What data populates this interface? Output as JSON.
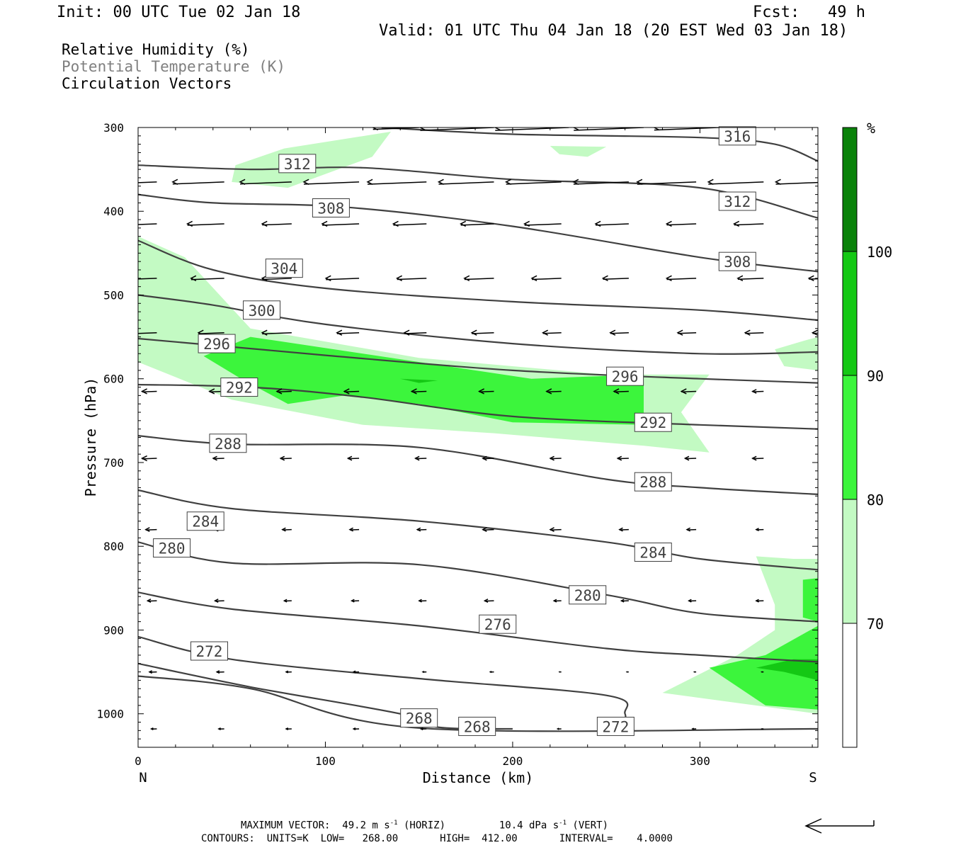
{
  "header": {
    "init": "Init: 00 UTC Tue 02 Jan 18",
    "fcst": "Fcst:   49 h",
    "valid": "Valid: 01 UTC Thu 04 Jan 18 (20 EST Wed 03 Jan 18)"
  },
  "legend": {
    "line1": "Relative Humidity (%)",
    "line2": "Potential Temperature (K)",
    "line3": "Circulation Vectors"
  },
  "footer": {
    "max_vector": "MAXIMUM VECTOR:  49.2 m s",
    "max_vector_exp": "-1",
    "max_vector_horiz": " (HORIZ)",
    "max_vector_vert": "10.4 dPa s",
    "max_vector_vert_exp": "-1",
    "max_vector_vert_tail": " (VERT)",
    "contours": "CONTOURS:  UNITS=K  LOW=   268.00       HIGH=  412.00       INTERVAL=    4.0000"
  },
  "colors": {
    "rh_70_80": "#c3fac3",
    "rh_80_90": "#3cf53c",
    "rh_90_100": "#14c814",
    "rh_100": "#0a820a",
    "theta_line": "#404040"
  },
  "chart_data": {
    "type": "contour",
    "xlabel": "Distance (km)",
    "ylabel": "Pressure (hPa)",
    "xlim": [
      0,
      363
    ],
    "ylim": [
      1040,
      300
    ],
    "x_ticks": [
      "0",
      "100",
      "200",
      "300"
    ],
    "y_ticks": [
      "300",
      "400",
      "500",
      "600",
      "700",
      "800",
      "900",
      "1000"
    ],
    "x_end_labels": {
      "left": "N",
      "right": "S"
    },
    "colorbar": {
      "unit": "%",
      "levels": [
        "70",
        "80",
        "90",
        "100"
      ]
    },
    "theta_contours": [
      {
        "value": 316,
        "points": [
          [
            130,
            300
          ],
          [
            200,
            308
          ],
          [
            300,
            312
          ],
          [
            340,
            320
          ],
          [
            363,
            340
          ]
        ]
      },
      {
        "value": 312,
        "points": [
          [
            0,
            345
          ],
          [
            60,
            350
          ],
          [
            120,
            348
          ],
          [
            200,
            362
          ],
          [
            300,
            372
          ],
          [
            363,
            408
          ]
        ]
      },
      {
        "value": 308,
        "points": [
          [
            0,
            380
          ],
          [
            40,
            390
          ],
          [
            110,
            395
          ],
          [
            200,
            418
          ],
          [
            300,
            455
          ],
          [
            363,
            472
          ]
        ]
      },
      {
        "value": 304,
        "points": [
          [
            0,
            435
          ],
          [
            40,
            470
          ],
          [
            100,
            492
          ],
          [
            200,
            508
          ],
          [
            300,
            518
          ],
          [
            363,
            530
          ]
        ]
      },
      {
        "value": 300,
        "points": [
          [
            0,
            500
          ],
          [
            40,
            512
          ],
          [
            100,
            535
          ],
          [
            200,
            558
          ],
          [
            300,
            570
          ],
          [
            363,
            568
          ]
        ]
      },
      {
        "value": 296,
        "points": [
          [
            0,
            552
          ],
          [
            40,
            560
          ],
          [
            100,
            572
          ],
          [
            200,
            590
          ],
          [
            300,
            600
          ],
          [
            363,
            605
          ]
        ]
      },
      {
        "value": 292,
        "points": [
          [
            0,
            607
          ],
          [
            60,
            610
          ],
          [
            120,
            622
          ],
          [
            200,
            645
          ],
          [
            300,
            655
          ],
          [
            363,
            660
          ]
        ]
      },
      {
        "value": 288,
        "points": [
          [
            0,
            668
          ],
          [
            50,
            678
          ],
          [
            150,
            682
          ],
          [
            250,
            720
          ],
          [
            300,
            730
          ],
          [
            363,
            738
          ]
        ]
      },
      {
        "value": 284,
        "points": [
          [
            0,
            733
          ],
          [
            50,
            755
          ],
          [
            150,
            770
          ],
          [
            250,
            795
          ],
          [
            300,
            815
          ],
          [
            363,
            828
          ]
        ]
      },
      {
        "value": 280,
        "points": [
          [
            0,
            795
          ],
          [
            50,
            820
          ],
          [
            150,
            822
          ],
          [
            250,
            858
          ],
          [
            300,
            880
          ],
          [
            363,
            890
          ]
        ]
      },
      {
        "value": 276,
        "points": [
          [
            0,
            855
          ],
          [
            50,
            875
          ],
          [
            150,
            895
          ],
          [
            250,
            922
          ],
          [
            300,
            930
          ],
          [
            363,
            938
          ]
        ]
      },
      {
        "value": 272,
        "points": [
          [
            0,
            908
          ],
          [
            50,
            935
          ],
          [
            150,
            958
          ],
          [
            250,
            978
          ],
          [
            260,
            1000
          ],
          [
            258,
            1018
          ]
        ]
      },
      {
        "value": 268,
        "points": [
          [
            0,
            940
          ],
          [
            60,
            968
          ],
          [
            140,
            1000
          ],
          [
            160,
            1016
          ],
          [
            200,
            1018
          ]
        ]
      },
      {
        "value": 268,
        "points": [
          [
            0,
            955
          ],
          [
            60,
            970
          ],
          [
            150,
            1017
          ],
          [
            363,
            1018
          ]
        ]
      }
    ],
    "rh_regions": [
      {
        "level": "70-80",
        "points": [
          [
            52,
            345
          ],
          [
            78,
            325
          ],
          [
            135,
            305
          ],
          [
            125,
            335
          ],
          [
            80,
            372
          ],
          [
            50,
            365
          ]
        ]
      },
      {
        "level": "70-80",
        "points": [
          [
            220,
            322
          ],
          [
            250,
            323
          ],
          [
            240,
            335
          ],
          [
            225,
            332
          ]
        ]
      },
      {
        "level": "70-80",
        "points": [
          [
            0,
            430
          ],
          [
            25,
            455
          ],
          [
            60,
            540
          ],
          [
            150,
            575
          ],
          [
            250,
            595
          ],
          [
            305,
            595
          ],
          [
            290,
            640
          ],
          [
            305,
            688
          ],
          [
            270,
            680
          ],
          [
            190,
            665
          ],
          [
            120,
            655
          ],
          [
            50,
            625
          ],
          [
            0,
            580
          ]
        ]
      },
      {
        "level": "70-80",
        "points": [
          [
            340,
            565
          ],
          [
            355,
            555
          ],
          [
            363,
            550
          ],
          [
            363,
            590
          ],
          [
            345,
            585
          ]
        ]
      },
      {
        "level": "70-80",
        "points": [
          [
            330,
            812
          ],
          [
            350,
            815
          ],
          [
            363,
            815
          ],
          [
            363,
            1000
          ],
          [
            280,
            975
          ],
          [
            320,
            930
          ],
          [
            340,
            900
          ],
          [
            340,
            870
          ]
        ]
      },
      {
        "level": "80-90",
        "points": [
          [
            35,
            573
          ],
          [
            60,
            550
          ],
          [
            120,
            570
          ],
          [
            180,
            590
          ],
          [
            210,
            600
          ],
          [
            270,
            595
          ],
          [
            270,
            655
          ],
          [
            200,
            652
          ],
          [
            150,
            630
          ],
          [
            110,
            620
          ],
          [
            80,
            630
          ],
          [
            55,
            600
          ]
        ]
      },
      {
        "level": "80-90",
        "points": [
          [
            305,
            945
          ],
          [
            335,
            930
          ],
          [
            363,
            895
          ],
          [
            363,
            995
          ],
          [
            335,
            990
          ]
        ]
      },
      {
        "level": "80-90",
        "points": [
          [
            355,
            840
          ],
          [
            363,
            838
          ],
          [
            363,
            890
          ],
          [
            355,
            885
          ]
        ]
      },
      {
        "level": "90-100",
        "points": [
          [
            140,
            600
          ],
          [
            160,
            602
          ],
          [
            150,
            605
          ]
        ]
      },
      {
        "level": "90-100",
        "points": [
          [
            330,
            945
          ],
          [
            350,
            935
          ],
          [
            363,
            935
          ],
          [
            363,
            960
          ],
          [
            345,
            950
          ]
        ]
      }
    ],
    "vectors": {
      "rows": [
        {
          "p": 300,
          "u": [
            -25,
            -40,
            -40,
            -38,
            -35
          ]
        },
        {
          "p": 365,
          "u": [
            -28,
            -28,
            -28,
            -30,
            -32,
            -30,
            -30,
            -30,
            -32,
            -30,
            -30
          ]
        },
        {
          "p": 415,
          "u": [
            -18,
            -20,
            -16,
            -20,
            -18,
            -18,
            -20,
            -18,
            -16,
            -16
          ]
        },
        {
          "p": 480,
          "u": [
            -15,
            -18,
            -16,
            -18,
            -16,
            -16,
            -16,
            -14,
            -16,
            -14,
            -12
          ]
        },
        {
          "p": 545,
          "u": [
            -14,
            -14,
            -16,
            -12,
            -12,
            -12,
            -10,
            -10,
            -10,
            -10,
            -10
          ]
        },
        {
          "p": 615,
          "u": [
            -8,
            -8,
            -8,
            -8,
            -8,
            -8,
            -8,
            -8,
            -8,
            -6
          ]
        },
        {
          "p": 695,
          "u": [
            -8,
            -6,
            -6,
            -6,
            -6,
            -6,
            -6,
            -6,
            -6,
            -6
          ]
        },
        {
          "p": 780,
          "u": [
            -6,
            -5,
            -5,
            -5,
            -5,
            -6,
            -6,
            -5,
            -5,
            -4
          ]
        },
        {
          "p": 865,
          "u": [
            -5,
            -5,
            -4,
            -4,
            -4,
            -5,
            -4,
            -4,
            -4,
            -4
          ]
        },
        {
          "p": 950,
          "u": [
            -4,
            -4,
            -3,
            -3,
            -2,
            -2,
            -1,
            -1,
            -1,
            -1
          ]
        },
        {
          "p": 1018,
          "u": [
            -3,
            -3,
            -3,
            -3,
            -3,
            -2,
            -2,
            -2,
            -2,
            -1
          ]
        }
      ]
    }
  }
}
